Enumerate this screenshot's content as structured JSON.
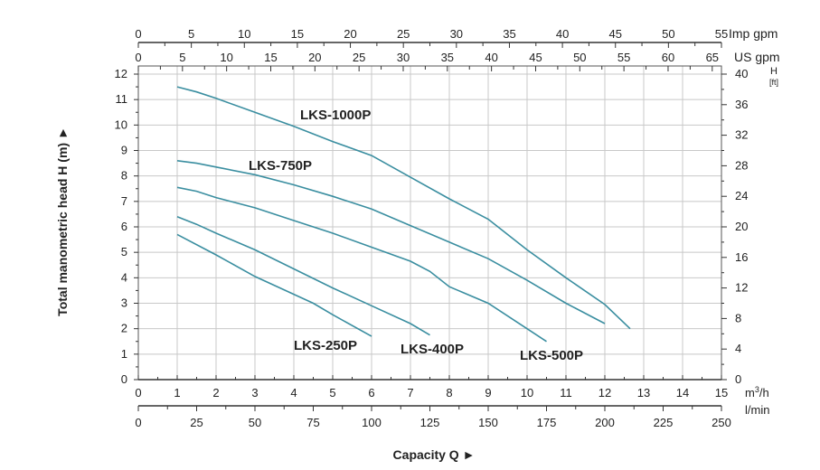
{
  "chart_data": {
    "type": "line",
    "xlabel": "Capacity Q ►",
    "ylabel": "Total manometric head H (m) ►",
    "x_unit": "m³/h",
    "y_unit": "",
    "xlim": [
      0,
      15
    ],
    "ylim": [
      0,
      12
    ],
    "grid": true,
    "line_color": "#3a8ea0",
    "x_ticks": [
      0,
      1,
      2,
      3,
      4,
      5,
      6,
      7,
      8,
      9,
      10,
      11,
      12,
      13,
      14,
      15
    ],
    "y_ticks": [
      0,
      1,
      2,
      3,
      4,
      5,
      6,
      7,
      8,
      9,
      10,
      11,
      12
    ],
    "secondary_axes": {
      "imp_gpm": {
        "label": "Imp gpm",
        "ticks": [
          0,
          5,
          10,
          15,
          20,
          25,
          30,
          35,
          40,
          45,
          50,
          55
        ]
      },
      "us_gpm": {
        "label": "US gpm",
        "ticks": [
          0,
          5,
          10,
          15,
          20,
          25,
          30,
          35,
          40,
          45,
          50,
          55,
          60,
          65
        ]
      },
      "l_min": {
        "label": "l/min",
        "ticks": [
          0,
          25,
          50,
          75,
          100,
          125,
          150,
          175,
          200,
          225,
          250
        ]
      },
      "head_ft": {
        "label": "H",
        "unit": "[ft]",
        "ticks": [
          0,
          4,
          8,
          12,
          16,
          20,
          24,
          28,
          32,
          36,
          40
        ]
      }
    },
    "series": [
      {
        "name": "LKS-1000P",
        "x": [
          1,
          1.5,
          2,
          3,
          4,
          5,
          6,
          7,
          8,
          9,
          10,
          11,
          12,
          12.65
        ],
        "y": [
          11.5,
          11.3,
          11.05,
          10.5,
          9.95,
          9.35,
          8.8,
          7.95,
          7.1,
          6.3,
          5.1,
          4.0,
          2.95,
          2.0
        ]
      },
      {
        "name": "LKS-750P",
        "x": [
          1,
          1.5,
          2,
          3,
          4,
          5,
          6,
          7,
          8,
          9,
          10,
          11,
          12
        ],
        "y": [
          8.6,
          8.5,
          8.35,
          8.05,
          7.65,
          7.2,
          6.7,
          6.05,
          5.4,
          4.75,
          3.9,
          3.0,
          2.2
        ]
      },
      {
        "name": "LKS-500P",
        "x": [
          1,
          1.5,
          2,
          3,
          4,
          5,
          6,
          7,
          7.5,
          8,
          9,
          10,
          10.5
        ],
        "y": [
          7.55,
          7.4,
          7.15,
          6.75,
          6.25,
          5.75,
          5.2,
          4.65,
          4.25,
          3.65,
          3.0,
          2.0,
          1.5
        ]
      },
      {
        "name": "LKS-400P",
        "x": [
          1,
          1.5,
          2,
          3,
          4,
          5,
          6,
          7,
          7.5
        ],
        "y": [
          6.4,
          6.1,
          5.75,
          5.1,
          4.35,
          3.6,
          2.9,
          2.2,
          1.75
        ]
      },
      {
        "name": "LKS-250P",
        "x": [
          1,
          2,
          3,
          4,
          4.5,
          5,
          6
        ],
        "y": [
          5.7,
          4.9,
          4.05,
          3.35,
          3.0,
          2.55,
          1.7
        ]
      }
    ]
  }
}
